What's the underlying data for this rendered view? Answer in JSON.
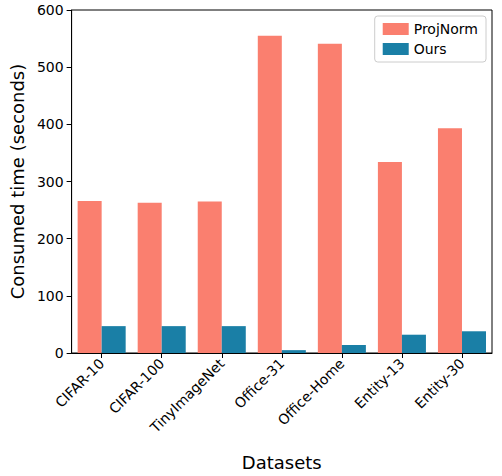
{
  "chart_data": {
    "type": "bar",
    "categories": [
      "CIFAR-10",
      "CIFAR-100",
      "TinyImageNet",
      "Office-31",
      "Office-Home",
      "Entity-13",
      "Entity-30"
    ],
    "series": [
      {
        "name": "ProjNorm",
        "color": "#fa7f6f",
        "values": [
          266,
          263,
          265,
          555,
          541,
          334,
          393
        ]
      },
      {
        "name": "Ours",
        "color": "#1a7fa6",
        "values": [
          47,
          47,
          47,
          5,
          14,
          32,
          38
        ]
      }
    ],
    "xlabel": "Datasets",
    "ylabel": "Consumed time (seconds)",
    "ylim": [
      0,
      600
    ],
    "yticks": [
      0,
      100,
      200,
      300,
      400,
      500,
      600
    ],
    "grid": false,
    "legend": "upper right"
  }
}
